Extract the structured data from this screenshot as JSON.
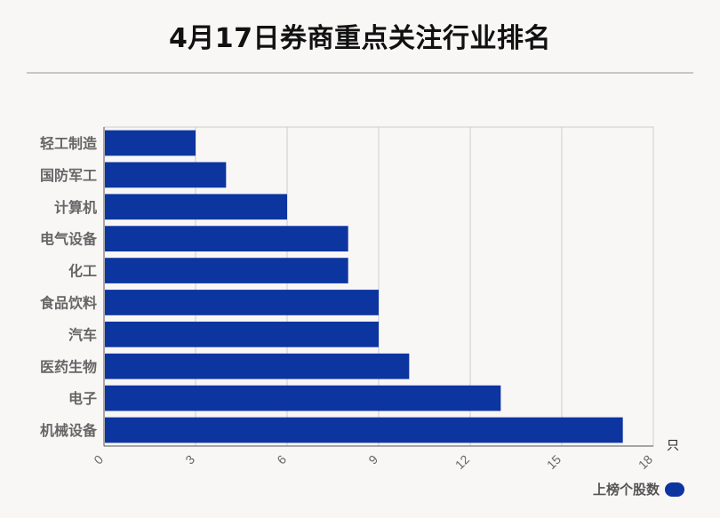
{
  "chart_data": {
    "type": "bar",
    "orientation": "horizontal",
    "title": "4月17日券商重点关注行业排名",
    "categories": [
      "轻工制造",
      "国防军工",
      "计算机",
      "电气设备",
      "化工",
      "食品饮料",
      "汽车",
      "医药生物",
      "电子",
      "机械设备"
    ],
    "series": [
      {
        "name": "上榜个股数",
        "values": [
          3,
          4,
          6,
          8,
          8,
          9,
          9,
          10,
          13,
          17
        ],
        "color": "#0d35a0"
      }
    ],
    "x_ticks": [
      "0",
      "3",
      "6",
      "9",
      "12",
      "15",
      "18"
    ],
    "xlim": [
      0,
      18
    ],
    "x_unit": "只",
    "grid": true,
    "legend_position": "bottom-right"
  }
}
